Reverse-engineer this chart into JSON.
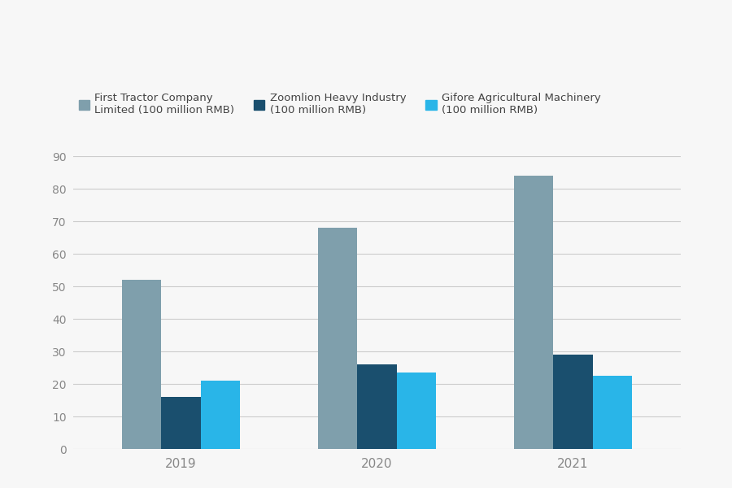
{
  "years": [
    "2019",
    "2020",
    "2021"
  ],
  "series": {
    "First Tractor Company\nLimited (100 million RMB)": {
      "values": [
        52,
        68,
        84
      ],
      "color": "#7f9fac"
    },
    "Zoomlion Heavy Industry\n(100 million RMB)": {
      "values": [
        16,
        26,
        29
      ],
      "color": "#1a4f6e"
    },
    "Gifore Agricultural Machinery\n(100 million RMB)": {
      "values": [
        21,
        23.5,
        22.5
      ],
      "color": "#29b5e8"
    }
  },
  "ylim": [
    0,
    90
  ],
  "yticks": [
    0,
    10,
    20,
    30,
    40,
    50,
    60,
    70,
    80,
    90
  ],
  "background_color": "#f7f7f7",
  "grid_color": "#cccccc",
  "bar_width": 0.2,
  "legend_labels": [
    "First Tractor Company\nLimited (100 million RMB)",
    "Zoomlion Heavy Industry\n(100 million RMB)",
    "Gifore Agricultural Machinery\n(100 million RMB)"
  ],
  "tick_color": "#aaaaaa",
  "label_color": "#888888"
}
